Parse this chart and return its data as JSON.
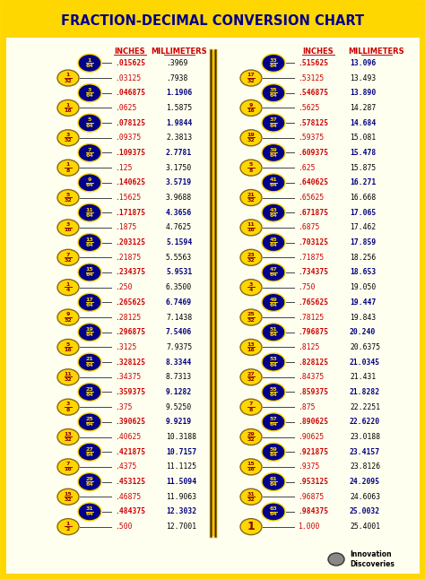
{
  "title": "FRACTION-DECIMAL CONVERSION CHART",
  "title_bg": "#FFD700",
  "title_color": "#00008B",
  "bg_color": "#FFFFF0",
  "border_color": "#FFD700",
  "header_color": "#CC0000",
  "inches_color": "#CC0000",
  "mm_bold_color": "#000080",
  "mm_normal_color": "#000000",
  "left_data": [
    {
      "num": 1,
      "den": 64,
      "dark": true,
      "inches": ".015625",
      "mm": ".3969",
      "mm_bold": false
    },
    {
      "num": 1,
      "den": 32,
      "dark": false,
      "inches": ".03125",
      "mm": ".7938",
      "mm_bold": false
    },
    {
      "num": 3,
      "den": 64,
      "dark": true,
      "inches": ".046875",
      "mm": "1.1906",
      "mm_bold": true
    },
    {
      "num": 1,
      "den": 16,
      "dark": false,
      "inches": ".0625",
      "mm": "1.5875",
      "mm_bold": false
    },
    {
      "num": 5,
      "den": 64,
      "dark": true,
      "inches": ".078125",
      "mm": "1.9844",
      "mm_bold": true
    },
    {
      "num": 3,
      "den": 32,
      "dark": false,
      "inches": ".09375",
      "mm": "2.3813",
      "mm_bold": false
    },
    {
      "num": 7,
      "den": 64,
      "dark": true,
      "inches": ".109375",
      "mm": "2.7781",
      "mm_bold": true
    },
    {
      "num": 1,
      "den": 8,
      "dark": false,
      "inches": ".125",
      "mm": "3.1750",
      "mm_bold": false
    },
    {
      "num": 9,
      "den": 64,
      "dark": true,
      "inches": ".140625",
      "mm": "3.5719",
      "mm_bold": true
    },
    {
      "num": 5,
      "den": 32,
      "dark": false,
      "inches": ".15625",
      "mm": "3.9688",
      "mm_bold": false
    },
    {
      "num": 11,
      "den": 64,
      "dark": true,
      "inches": ".171875",
      "mm": "4.3656",
      "mm_bold": true
    },
    {
      "num": 3,
      "den": 16,
      "dark": false,
      "inches": ".1875",
      "mm": "4.7625",
      "mm_bold": false
    },
    {
      "num": 13,
      "den": 64,
      "dark": true,
      "inches": ".203125",
      "mm": "5.1594",
      "mm_bold": true
    },
    {
      "num": 7,
      "den": 32,
      "dark": false,
      "inches": ".21875",
      "mm": "5.5563",
      "mm_bold": false
    },
    {
      "num": 15,
      "den": 64,
      "dark": true,
      "inches": ".234375",
      "mm": "5.9531",
      "mm_bold": true
    },
    {
      "num": 1,
      "den": 4,
      "dark": false,
      "inches": ".250",
      "mm": "6.3500",
      "mm_bold": false
    },
    {
      "num": 17,
      "den": 64,
      "dark": true,
      "inches": ".265625",
      "mm": "6.7469",
      "mm_bold": true
    },
    {
      "num": 9,
      "den": 32,
      "dark": false,
      "inches": ".28125",
      "mm": "7.1438",
      "mm_bold": false
    },
    {
      "num": 19,
      "den": 64,
      "dark": true,
      "inches": ".296875",
      "mm": "7.5406",
      "mm_bold": true
    },
    {
      "num": 5,
      "den": 16,
      "dark": false,
      "inches": ".3125",
      "mm": "7.9375",
      "mm_bold": false
    },
    {
      "num": 21,
      "den": 64,
      "dark": true,
      "inches": ".328125",
      "mm": "8.3344",
      "mm_bold": true
    },
    {
      "num": 11,
      "den": 32,
      "dark": false,
      "inches": ".34375",
      "mm": "8.7313",
      "mm_bold": false
    },
    {
      "num": 23,
      "den": 64,
      "dark": true,
      "inches": ".359375",
      "mm": "9.1282",
      "mm_bold": true
    },
    {
      "num": 3,
      "den": 8,
      "dark": false,
      "inches": ".375",
      "mm": "9.5250",
      "mm_bold": false
    },
    {
      "num": 25,
      "den": 64,
      "dark": true,
      "inches": ".390625",
      "mm": "9.9219",
      "mm_bold": true
    },
    {
      "num": 13,
      "den": 32,
      "dark": false,
      "inches": ".40625",
      "mm": "10.3188",
      "mm_bold": false
    },
    {
      "num": 27,
      "den": 64,
      "dark": true,
      "inches": ".421875",
      "mm": "10.7157",
      "mm_bold": true
    },
    {
      "num": 7,
      "den": 16,
      "dark": false,
      "inches": ".4375",
      "mm": "11.1125",
      "mm_bold": false
    },
    {
      "num": 29,
      "den": 64,
      "dark": true,
      "inches": ".453125",
      "mm": "11.5094",
      "mm_bold": true
    },
    {
      "num": 15,
      "den": 32,
      "dark": false,
      "inches": ".46875",
      "mm": "11.9063",
      "mm_bold": false
    },
    {
      "num": 31,
      "den": 64,
      "dark": true,
      "inches": ".484375",
      "mm": "12.3032",
      "mm_bold": true
    },
    {
      "num": 1,
      "den": 2,
      "dark": false,
      "inches": ".500",
      "mm": "12.7001",
      "mm_bold": false
    }
  ],
  "right_data": [
    {
      "num": 33,
      "den": 64,
      "dark": true,
      "inches": ".515625",
      "mm": "13.096",
      "mm_bold": true
    },
    {
      "num": 17,
      "den": 32,
      "dark": false,
      "inches": ".53125",
      "mm": "13.493",
      "mm_bold": false
    },
    {
      "num": 35,
      "den": 64,
      "dark": true,
      "inches": ".546875",
      "mm": "13.890",
      "mm_bold": true
    },
    {
      "num": 9,
      "den": 16,
      "dark": false,
      "inches": ".5625",
      "mm": "14.287",
      "mm_bold": false
    },
    {
      "num": 37,
      "den": 64,
      "dark": true,
      "inches": ".578125",
      "mm": "14.684",
      "mm_bold": true
    },
    {
      "num": 19,
      "den": 32,
      "dark": false,
      "inches": ".59375",
      "mm": "15.081",
      "mm_bold": false
    },
    {
      "num": 39,
      "den": 64,
      "dark": true,
      "inches": ".609375",
      "mm": "15.478",
      "mm_bold": true
    },
    {
      "num": 5,
      "den": 8,
      "dark": false,
      "inches": ".625",
      "mm": "15.875",
      "mm_bold": false
    },
    {
      "num": 41,
      "den": 64,
      "dark": true,
      "inches": ".640625",
      "mm": "16.271",
      "mm_bold": true
    },
    {
      "num": 21,
      "den": 32,
      "dark": false,
      "inches": ".65625",
      "mm": "16.668",
      "mm_bold": false
    },
    {
      "num": 43,
      "den": 64,
      "dark": true,
      "inches": ".671875",
      "mm": "17.065",
      "mm_bold": true
    },
    {
      "num": 11,
      "den": 16,
      "dark": false,
      "inches": ".6875",
      "mm": "17.462",
      "mm_bold": false
    },
    {
      "num": 45,
      "den": 64,
      "dark": true,
      "inches": ".703125",
      "mm": "17.859",
      "mm_bold": true
    },
    {
      "num": 23,
      "den": 32,
      "dark": false,
      "inches": ".71875",
      "mm": "18.256",
      "mm_bold": false
    },
    {
      "num": 47,
      "den": 64,
      "dark": true,
      "inches": ".734375",
      "mm": "18.653",
      "mm_bold": true
    },
    {
      "num": 3,
      "den": 4,
      "dark": false,
      "inches": ".750",
      "mm": "19.050",
      "mm_bold": false
    },
    {
      "num": 49,
      "den": 64,
      "dark": true,
      "inches": ".765625",
      "mm": "19.447",
      "mm_bold": true
    },
    {
      "num": 25,
      "den": 32,
      "dark": false,
      "inches": ".78125",
      "mm": "19.843",
      "mm_bold": false
    },
    {
      "num": 51,
      "den": 64,
      "dark": true,
      "inches": ".796875",
      "mm": "20.240",
      "mm_bold": true
    },
    {
      "num": 13,
      "den": 16,
      "dark": false,
      "inches": ".8125",
      "mm": "20.6375",
      "mm_bold": false
    },
    {
      "num": 53,
      "den": 64,
      "dark": true,
      "inches": ".828125",
      "mm": "21.0345",
      "mm_bold": true
    },
    {
      "num": 27,
      "den": 32,
      "dark": false,
      "inches": ".84375",
      "mm": "21.431",
      "mm_bold": false
    },
    {
      "num": 55,
      "den": 64,
      "dark": true,
      "inches": ".859375",
      "mm": "21.8282",
      "mm_bold": true
    },
    {
      "num": 7,
      "den": 8,
      "dark": false,
      "inches": ".875",
      "mm": "22.2251",
      "mm_bold": false
    },
    {
      "num": 57,
      "den": 64,
      "dark": true,
      "inches": ".890625",
      "mm": "22.6220",
      "mm_bold": true
    },
    {
      "num": 29,
      "den": 32,
      "dark": false,
      "inches": ".90625",
      "mm": "23.0188",
      "mm_bold": false
    },
    {
      "num": 59,
      "den": 64,
      "dark": true,
      "inches": ".921875",
      "mm": "23.4157",
      "mm_bold": true
    },
    {
      "num": 15,
      "den": 16,
      "dark": false,
      "inches": ".9375",
      "mm": "23.8126",
      "mm_bold": false
    },
    {
      "num": 61,
      "den": 64,
      "dark": true,
      "inches": ".953125",
      "mm": "24.2095",
      "mm_bold": true
    },
    {
      "num": 31,
      "den": 32,
      "dark": false,
      "inches": ".96875",
      "mm": "24.6063",
      "mm_bold": false
    },
    {
      "num": 63,
      "den": 64,
      "dark": true,
      "inches": ".984375",
      "mm": "25.0032",
      "mm_bold": true
    },
    {
      "num": 1,
      "den": 1,
      "dark": false,
      "inches": "1.000",
      "mm": "25.4001",
      "mm_bold": false
    }
  ],
  "dark_bg": "#00008B",
  "dark_text": "#FFD700",
  "light_bg": "#FFD700",
  "light_text": "#8B0000"
}
